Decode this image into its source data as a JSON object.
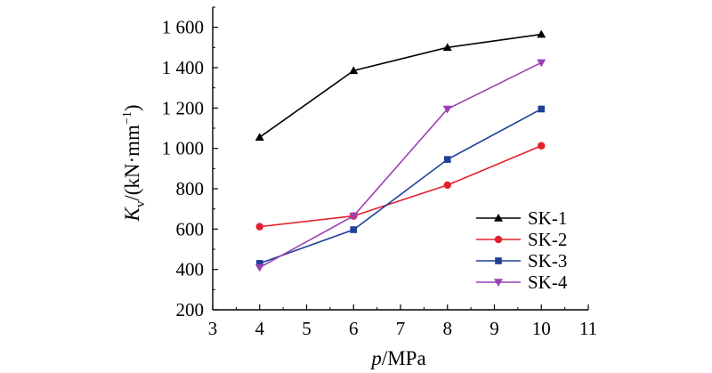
{
  "chart_data": {
    "type": "line",
    "x": [
      4,
      6,
      8,
      10
    ],
    "xlabel": {
      "var": "p",
      "unit": "/MPa"
    },
    "ylabel": {
      "var": "K",
      "sub": "v",
      "unit_pre": "/(kN·mm",
      "sup": "−1",
      "unit_post": ")"
    },
    "xlim": [
      3,
      11
    ],
    "ylim": [
      200,
      1700
    ],
    "xticks": [
      3,
      4,
      5,
      6,
      7,
      8,
      9,
      10,
      11
    ],
    "xtick_labels": [
      "3",
      "4",
      "5",
      "6",
      "7",
      "8",
      "9",
      "10",
      "11"
    ],
    "yticks": [
      200,
      400,
      600,
      800,
      1000,
      1200,
      1400,
      1600
    ],
    "ytick_labels": [
      "200",
      "400",
      "600",
      "800",
      "1 000",
      "1 200",
      "1 400",
      "1 600"
    ],
    "grid": false,
    "legend_position": "bottom-right",
    "series": [
      {
        "name": "SK-1",
        "values": [
          1055,
          1385,
          1500,
          1565
        ],
        "color": "#000000",
        "marker": "triangle-up"
      },
      {
        "name": "SK-2",
        "values": [
          612,
          665,
          818,
          1013
        ],
        "color": "#e4202c",
        "marker": "circle"
      },
      {
        "name": "SK-3",
        "values": [
          430,
          597,
          945,
          1195
        ],
        "color": "#1f3f99",
        "marker": "square"
      },
      {
        "name": "SK-4",
        "values": [
          410,
          665,
          1195,
          1425
        ],
        "color": "#9b3fb5",
        "marker": "triangle-down"
      }
    ]
  }
}
